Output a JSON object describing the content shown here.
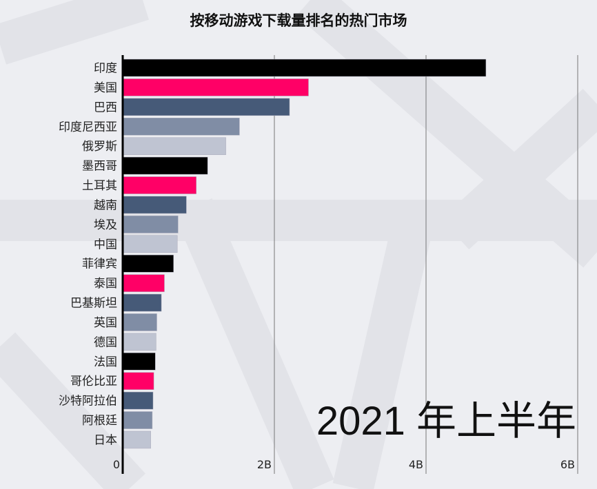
{
  "chart_data": {
    "type": "bar",
    "orientation": "horizontal",
    "title": "按移动游戏下载量排名的热门市场",
    "period_label": "2021 年上半年",
    "categories": [
      "印度",
      "美国",
      "巴西",
      "印度尼西亚",
      "俄罗斯",
      "墨西哥",
      "土耳其",
      "越南",
      "埃及",
      "中国",
      "菲律宾",
      "泰国",
      "巴基斯坦",
      "英国",
      "德国",
      "法国",
      "哥伦比亚",
      "沙特阿拉伯",
      "阿根廷",
      "日本"
    ],
    "values": [
      4.79,
      2.45,
      2.2,
      1.54,
      1.36,
      1.12,
      0.97,
      0.84,
      0.73,
      0.72,
      0.67,
      0.55,
      0.51,
      0.45,
      0.44,
      0.43,
      0.41,
      0.4,
      0.39,
      0.37
    ],
    "unit": "B",
    "xlim": [
      0,
      6.2
    ],
    "x_ticks": [
      {
        "value": 0,
        "label": "0"
      },
      {
        "value": 2,
        "label": "2B"
      },
      {
        "value": 4,
        "label": "4B"
      },
      {
        "value": 6,
        "label": "6B"
      }
    ],
    "grid": true,
    "color_cycle": [
      "#000000",
      "#ff0066",
      "#465a78",
      "#808da5",
      "#bfc4d2"
    ]
  }
}
